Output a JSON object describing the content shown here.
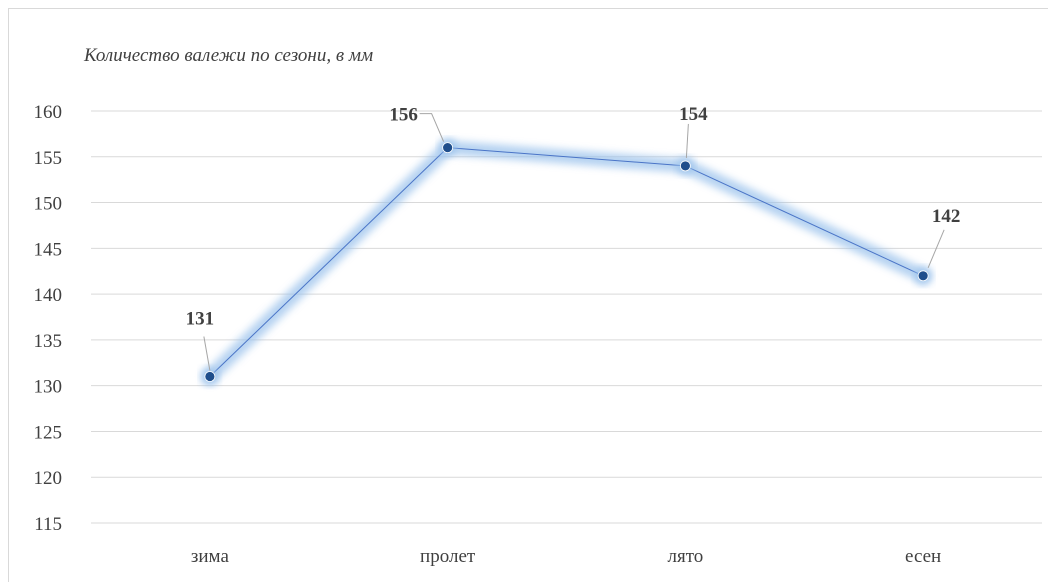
{
  "chart_data": {
    "type": "line",
    "title": "Количество валежи по сезони, в мм",
    "categories": [
      "зима",
      "пролет",
      "лято",
      "есен"
    ],
    "series": [
      {
        "values": [
          131,
          156,
          154,
          142
        ]
      }
    ],
    "data_labels": [
      "131",
      "156",
      "154",
      "142"
    ],
    "ylim": [
      115,
      160
    ],
    "yticks": [
      115,
      120,
      125,
      130,
      135,
      140,
      145,
      150,
      155,
      160
    ],
    "grid": true,
    "legend": "none",
    "colors": {
      "line": "#4a74c7",
      "glow": "#9cc3ec",
      "marker": "#1f4e8c",
      "grid": "#d9d9d9",
      "text": "#404040"
    }
  }
}
